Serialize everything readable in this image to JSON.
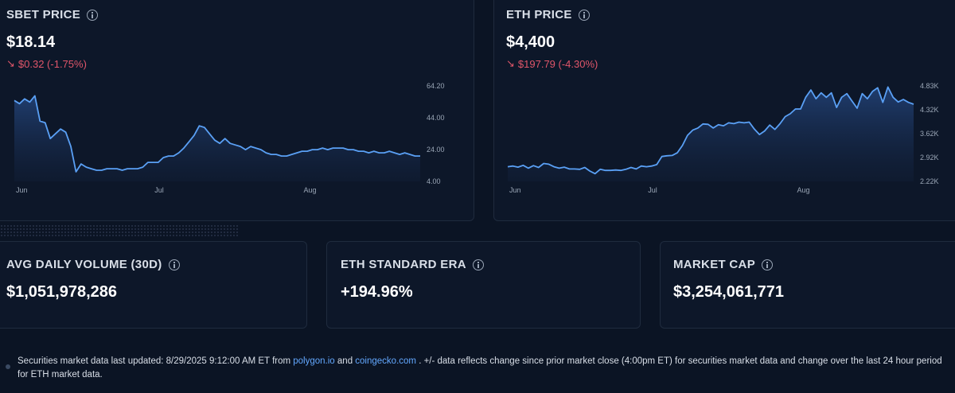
{
  "sbet": {
    "title": "SBET PRICE",
    "price": "$18.14",
    "change": "$0.32 (-1.75%)",
    "chart_data": {
      "type": "area",
      "y_ticks": [
        "64.20",
        "44.00",
        "24.00",
        "4.00"
      ],
      "ylim": [
        4,
        64.2
      ],
      "x_ticks": [
        "Jun",
        "Jul",
        "Aug"
      ],
      "x_tick_index": [
        0,
        27,
        56
      ],
      "x_count": 80,
      "values": [
        55,
        53,
        56,
        54,
        58,
        42,
        41,
        31,
        34,
        37,
        35,
        26,
        10,
        15,
        13,
        12,
        11,
        11,
        12,
        12,
        12,
        11,
        12,
        12,
        12,
        13,
        16,
        16,
        16,
        19,
        20,
        20,
        22,
        25,
        29,
        33,
        39,
        38,
        34,
        30,
        28,
        31,
        28,
        27,
        26,
        24,
        26,
        25,
        24,
        22,
        21,
        21,
        20,
        20,
        21,
        22,
        23,
        23,
        24,
        24,
        25,
        24,
        25,
        25,
        25,
        24,
        24,
        23,
        23,
        22,
        23,
        22,
        22,
        23,
        22,
        21,
        22,
        21,
        20,
        20
      ]
    },
    "line_color": "#5aa0f5"
  },
  "eth": {
    "title": "ETH PRICE",
    "price": "$4,400",
    "change": "$197.79 (-4.30%)",
    "chart_data": {
      "type": "area",
      "y_ticks": [
        "4.83K",
        "4.32K",
        "3.62K",
        "2.92K",
        "2.22K"
      ],
      "ylim": [
        2220,
        4830
      ],
      "x_ticks": [
        "Jun",
        "Jul",
        "Aug"
      ],
      "x_tick_index": [
        0,
        27,
        56
      ],
      "x_count": 80,
      "values": [
        2620,
        2640,
        2610,
        2660,
        2580,
        2650,
        2600,
        2710,
        2690,
        2620,
        2580,
        2610,
        2560,
        2560,
        2550,
        2600,
        2500,
        2430,
        2550,
        2520,
        2520,
        2530,
        2520,
        2550,
        2600,
        2560,
        2640,
        2620,
        2640,
        2680,
        2900,
        2920,
        2930,
        3000,
        3200,
        3480,
        3620,
        3680,
        3790,
        3780,
        3680,
        3770,
        3740,
        3820,
        3800,
        3840,
        3820,
        3840,
        3650,
        3500,
        3600,
        3760,
        3640,
        3800,
        3990,
        4070,
        4200,
        4200,
        4520,
        4720,
        4480,
        4640,
        4520,
        4640,
        4240,
        4520,
        4620,
        4420,
        4220,
        4620,
        4480,
        4680,
        4780,
        4380,
        4800,
        4520,
        4390,
        4460,
        4380,
        4330
      ]
    },
    "line_color": "#5aa0f5"
  },
  "stats": [
    {
      "title": "AVG DAILY VOLUME (30D)",
      "value": "$1,051,978,286"
    },
    {
      "title": "ETH STANDARD ERA",
      "value": "+194.96%"
    },
    {
      "title": "MARKET CAP",
      "value": "$3,254,061,771"
    }
  ],
  "footer": {
    "part1": "Securities market data last updated: 8/29/2025 9:12:00 AM ET from ",
    "link1": "polygon.io",
    "part2": " and ",
    "link2": "coingecko.com",
    "part3": " . +/- data reflects change since prior market close (4:00pm ET) for securities market data and change over the last 24 hour period for ETH market data."
  },
  "colors": {
    "negative": "#e0566a",
    "link": "#63a8ff",
    "background": "#0b1424"
  }
}
